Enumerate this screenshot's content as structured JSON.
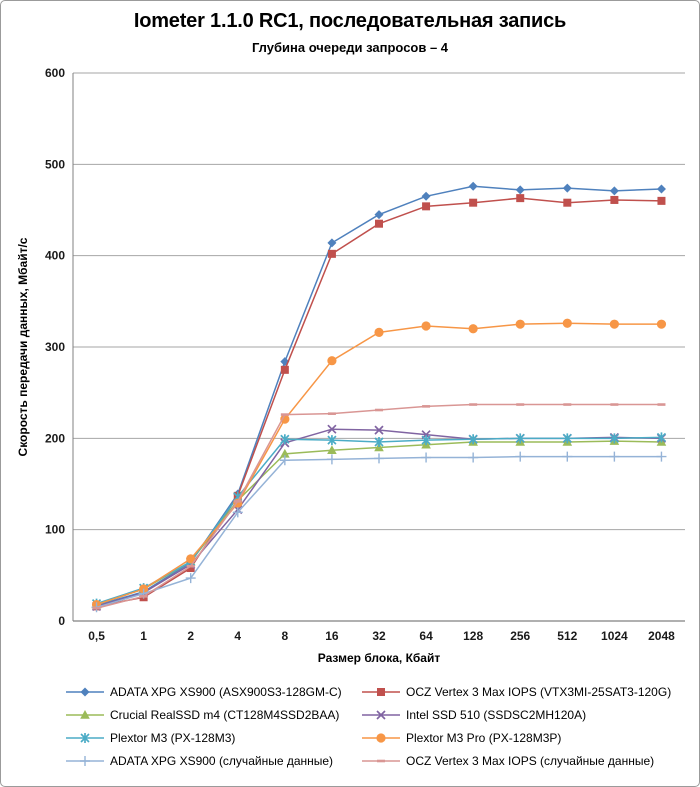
{
  "title": "Iometer 1.1.0 RC1, последовательная запись",
  "subtitle": "Глубина очереди запросов – 4",
  "chart_data": {
    "type": "line",
    "title": "Iometer 1.1.0 RC1, последовательная запись",
    "subtitle": "Глубина очереди запросов – 4",
    "xlabel": "Размер блока, Кбайт",
    "ylabel": "Скорость передачи данных, Мбайт/с",
    "categories": [
      "0,5",
      "1",
      "2",
      "4",
      "8",
      "16",
      "32",
      "64",
      "128",
      "256",
      "512",
      "1024",
      "2048"
    ],
    "ylim": [
      0,
      600
    ],
    "yticks": [
      0,
      100,
      200,
      300,
      400,
      500,
      600
    ],
    "grid": "horizontal",
    "legend_position": "bottom",
    "axis_color": "#808080",
    "grid_color": "#a6a6a6",
    "series": [
      {
        "name": "ADATA XPG XS900 (ASX900S3-128GM-C)",
        "color": "#4F81BD",
        "marker": "diamond",
        "values": [
          17,
          32,
          64,
          139,
          284,
          414,
          445,
          465,
          476,
          472,
          474,
          471,
          473
        ]
      },
      {
        "name": "OCZ Vertex 3 Max IOPS (VTX3MI-25SAT3-120G)",
        "color": "#C0504D",
        "marker": "square",
        "values": [
          16,
          26,
          58,
          137,
          275,
          402,
          435,
          454,
          458,
          463,
          458,
          461,
          460
        ]
      },
      {
        "name": "Crucial RealSSD m4 (CT128M4SSD2BAA)",
        "color": "#9BBB59",
        "marker": "triangle",
        "values": [
          18,
          35,
          65,
          132,
          183,
          187,
          190,
          193,
          196,
          196,
          196,
          197,
          196
        ]
      },
      {
        "name": "Intel SSD 510 (SSDSC2MH120A)",
        "color": "#8064A2",
        "marker": "x",
        "values": [
          16,
          31,
          62,
          122,
          195,
          210,
          209,
          204,
          199,
          200,
          200,
          201,
          200
        ]
      },
      {
        "name": "Plextor M3 (PX-128M3)",
        "color": "#4BACC6",
        "marker": "asterisk",
        "values": [
          19,
          36,
          65,
          136,
          199,
          198,
          196,
          198,
          199,
          200,
          200,
          200,
          201
        ]
      },
      {
        "name": "Plextor M3 Pro (PX-128M3P)",
        "color": "#F79646",
        "marker": "circle",
        "values": [
          18,
          35,
          68,
          129,
          221,
          285,
          316,
          323,
          320,
          325,
          326,
          325,
          325
        ]
      },
      {
        "name": "ADATA XPG XS900 (случайные данные)",
        "color": "#95B3D7",
        "marker": "plus",
        "values": [
          15,
          30,
          47,
          119,
          176,
          177,
          178,
          179,
          179,
          180,
          180,
          180,
          180
        ]
      },
      {
        "name": "OCZ Vertex 3 Max IOPS (случайные данные)",
        "color": "#D99694",
        "marker": "dash",
        "values": [
          14,
          27,
          60,
          131,
          226,
          227,
          231,
          235,
          237,
          237,
          237,
          237,
          237
        ]
      }
    ]
  }
}
